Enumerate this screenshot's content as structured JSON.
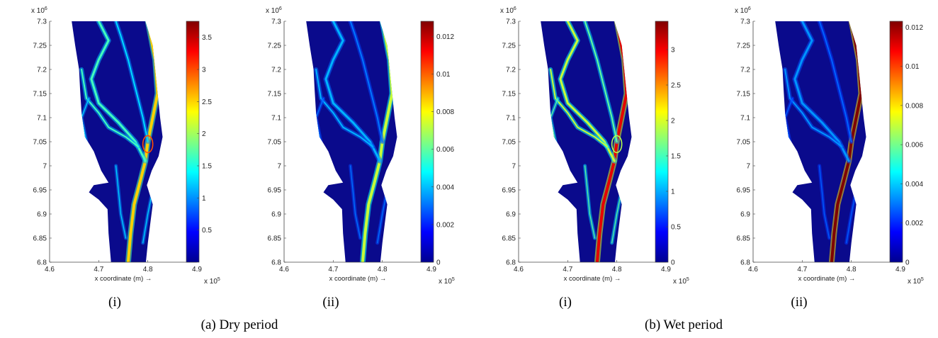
{
  "figure": {
    "groups": [
      {
        "caption": "(a) Dry period"
      },
      {
        "caption": "(b) Wet period"
      }
    ]
  },
  "colors": {
    "background_fill": "#0a0a8c",
    "jet": [
      "#00008f",
      "#0000ff",
      "#0080ff",
      "#00ffff",
      "#80ff80",
      "#ffff00",
      "#ff8000",
      "#ff0000",
      "#800000"
    ]
  },
  "chart_data": [
    {
      "type": "heatmap",
      "panel_label": "(i)",
      "group": "(a) Dry period",
      "xlabel": "x coordinate (m) →",
      "x_exponent": "x 10",
      "x_exponent_power": "5",
      "y_exponent": "x 10",
      "y_exponent_power": "6",
      "xlim": [
        4.6,
        4.9
      ],
      "ylim": [
        6.8,
        7.3
      ],
      "x_ticks": [
        "4.6",
        "4.7",
        "4.8",
        "4.9"
      ],
      "y_ticks": [
        "6.8",
        "6.85",
        "6.9",
        "6.95",
        "7",
        "7.05",
        "7.1",
        "7.15",
        "7.2",
        "7.25",
        "7.3"
      ],
      "colorbar": {
        "min": 0,
        "max": 3.75,
        "ticks": [
          "0.5",
          "1",
          "1.5",
          "2",
          "2.5",
          "3",
          "3.5"
        ]
      },
      "channel_intensity": [
        0.22,
        0.32,
        0.55
      ],
      "hotspot": {
        "x": 4.8,
        "y": 7.045,
        "level": 0.8
      }
    },
    {
      "type": "heatmap",
      "panel_label": "(ii)",
      "group": "(a) Dry period",
      "xlabel": "x coordinate (m) →",
      "x_exponent": "x 10",
      "x_exponent_power": "5",
      "y_exponent": "x 10",
      "y_exponent_power": "6",
      "xlim": [
        4.6,
        4.9
      ],
      "ylim": [
        6.8,
        7.3
      ],
      "x_ticks": [
        "4.6",
        "4.7",
        "4.8",
        "4.9"
      ],
      "y_ticks": [
        "6.8",
        "6.85",
        "6.9",
        "6.95",
        "7",
        "7.05",
        "7.1",
        "7.15",
        "7.2",
        "7.25",
        "7.3"
      ],
      "colorbar": {
        "min": 0,
        "max": 0.0128,
        "ticks": [
          "0",
          "0.002",
          "0.004",
          "0.006",
          "0.008",
          "0.01",
          "0.012"
        ]
      },
      "channel_intensity": [
        0.12,
        0.18,
        0.45
      ],
      "hotspot": null
    },
    {
      "type": "heatmap",
      "panel_label": "(i)",
      "group": "(b) Wet period",
      "xlabel": "x coordinate (m) →",
      "x_exponent": "x 10",
      "x_exponent_power": "5",
      "y_exponent": "x 10",
      "y_exponent_power": "6",
      "xlim": [
        4.6,
        4.9
      ],
      "ylim": [
        6.8,
        7.3
      ],
      "x_ticks": [
        "4.6",
        "4.7",
        "4.8",
        "4.9"
      ],
      "y_ticks": [
        "6.8",
        "6.85",
        "6.9",
        "6.95",
        "7",
        "7.05",
        "7.1",
        "7.15",
        "7.2",
        "7.25",
        "7.3"
      ],
      "colorbar": {
        "min": 0,
        "max": 3.4,
        "ticks": [
          "0",
          "0.5",
          "1",
          "1.5",
          "2",
          "2.5",
          "3"
        ]
      },
      "channel_intensity": [
        0.35,
        0.45,
        0.78
      ],
      "hotspot": {
        "x": 4.8,
        "y": 7.045,
        "level": 0.55
      }
    },
    {
      "type": "heatmap",
      "panel_label": "(ii)",
      "group": "(b) Wet period",
      "xlabel": "x coordinate (m) →",
      "x_exponent": "x 10",
      "x_exponent_power": "5",
      "y_exponent": "x 10",
      "y_exponent_power": "6",
      "xlim": [
        4.6,
        4.9
      ],
      "ylim": [
        6.8,
        7.3
      ],
      "x_ticks": [
        "4.6",
        "4.7",
        "4.8",
        "4.9"
      ],
      "y_ticks": [
        "6.8",
        "6.85",
        "6.9",
        "6.95",
        "7",
        "7.05",
        "7.1",
        "7.15",
        "7.2",
        "7.25",
        "7.3"
      ],
      "colorbar": {
        "min": 0,
        "max": 0.0123,
        "ticks": [
          "0",
          "0.002",
          "0.004",
          "0.006",
          "0.008",
          "0.01",
          "0.012"
        ]
      },
      "channel_intensity": [
        0.1,
        0.15,
        0.9
      ],
      "hotspot": null
    }
  ]
}
